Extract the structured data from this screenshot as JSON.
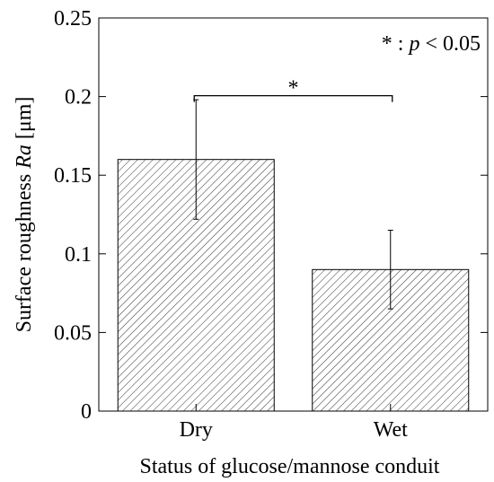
{
  "chart_data": {
    "type": "bar",
    "categories": [
      "Dry",
      "Wet"
    ],
    "values": [
      0.16,
      0.09
    ],
    "errors": [
      0.038,
      0.025
    ],
    "title": "",
    "xlabel": "Status of glucose/mannose conduit",
    "ylabel_prefix": "Surface roughness ",
    "ylabel_italic": "Ra",
    "ylabel_suffix": " [μm]",
    "ylim": [
      0,
      0.25
    ],
    "yticks": [
      {
        "value": 0,
        "label": "0"
      },
      {
        "value": 0.05,
        "label": "0.05"
      },
      {
        "value": 0.1,
        "label": "0.1"
      },
      {
        "value": 0.15,
        "label": "0.15"
      },
      {
        "value": 0.2,
        "label": "0.2"
      },
      {
        "value": 0.25,
        "label": "0.25"
      }
    ],
    "grid": false,
    "bar_fill": "hatched",
    "bar_color": "#000000",
    "significance": {
      "between": [
        0,
        1
      ],
      "y": 0.2,
      "marker": "*"
    },
    "annotation": {
      "prefix": "* : ",
      "italic": "p",
      "suffix": " < 0.05"
    }
  }
}
